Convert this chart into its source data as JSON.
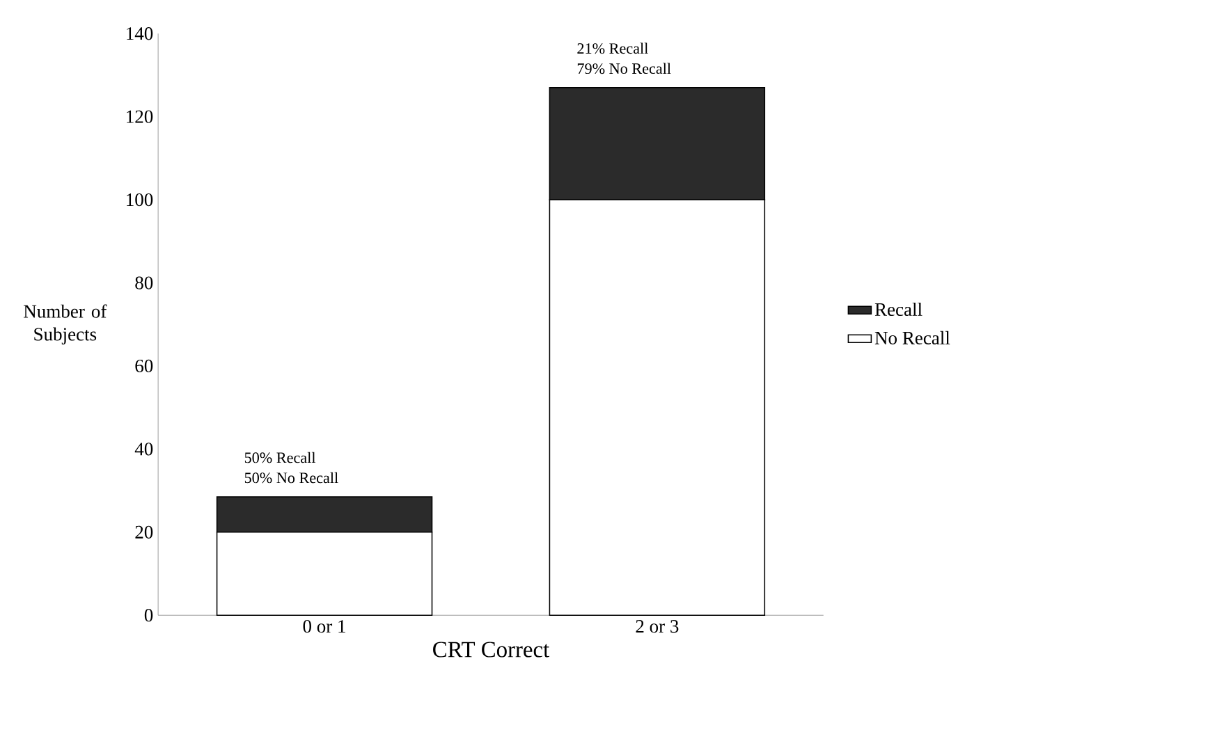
{
  "chart_data": {
    "type": "bar",
    "stacked": true,
    "xlabel": "CRT Correct",
    "ylabel": "Number of Subjects",
    "categories": [
      "0 or 1",
      "2 or 3"
    ],
    "series": [
      {
        "name": "No Recall",
        "color": "#ffffff",
        "values": [
          20,
          100
        ]
      },
      {
        "name": "Recall",
        "color": "#2b2b2b",
        "values": [
          8.5,
          27
        ]
      }
    ],
    "ylim": [
      0,
      140
    ],
    "yticks": [
      0,
      20,
      40,
      60,
      80,
      100,
      120,
      140
    ],
    "legend": "right",
    "annotations": [
      "50% Recall",
      "50% No Recall",
      "21% Recall",
      "79% No Recall"
    ]
  }
}
